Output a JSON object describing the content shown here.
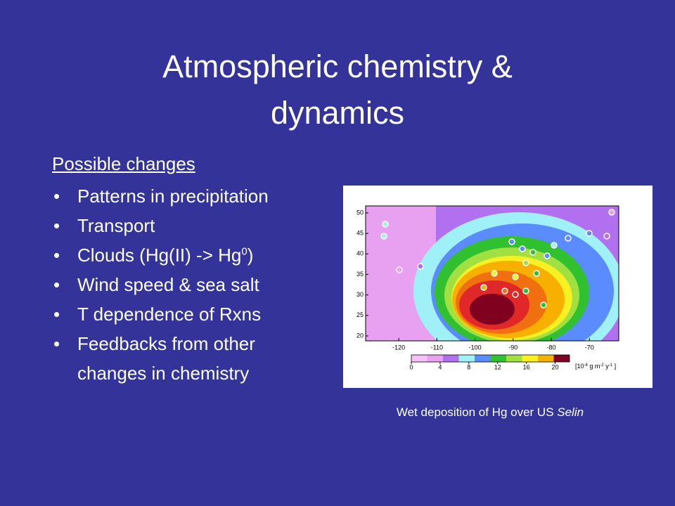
{
  "title": "Atmospheric chemistry & dynamics",
  "list": {
    "heading": "Possible changes",
    "items": [
      {
        "text": "Patterns in precipitation"
      },
      {
        "text": "Transport"
      },
      {
        "text": "Clouds (Hg(II) -> Hg",
        "sup": "0",
        "tail": ")"
      },
      {
        "text": "Wind speed & sea salt"
      },
      {
        "text": "T dependence  of Rxns"
      },
      {
        "text": "Feedbacks from other changes in chemistry"
      }
    ]
  },
  "figure": {
    "xlim": [
      -128.7,
      -62.3
    ],
    "ylim": [
      18.8,
      51.7
    ],
    "xticks": [
      -120,
      -110,
      -100,
      -90,
      -80,
      -70
    ],
    "yticks": [
      50,
      45,
      40,
      35,
      30,
      25,
      20
    ],
    "colorbar": {
      "lim": [
        0,
        22
      ],
      "ticks": [
        0,
        4,
        8,
        12,
        16,
        20
      ],
      "unit": [
        {
          "t": "[10"
        },
        {
          "sup": "-6"
        },
        {
          "t": " g m"
        },
        {
          "sup": "-2"
        },
        {
          "t": " y"
        },
        {
          "sup": "-1"
        },
        {
          "t": " ]"
        }
      ]
    },
    "caption": {
      "text": "Wet deposition of Hg over US ",
      "author": "Selin"
    }
  }
}
